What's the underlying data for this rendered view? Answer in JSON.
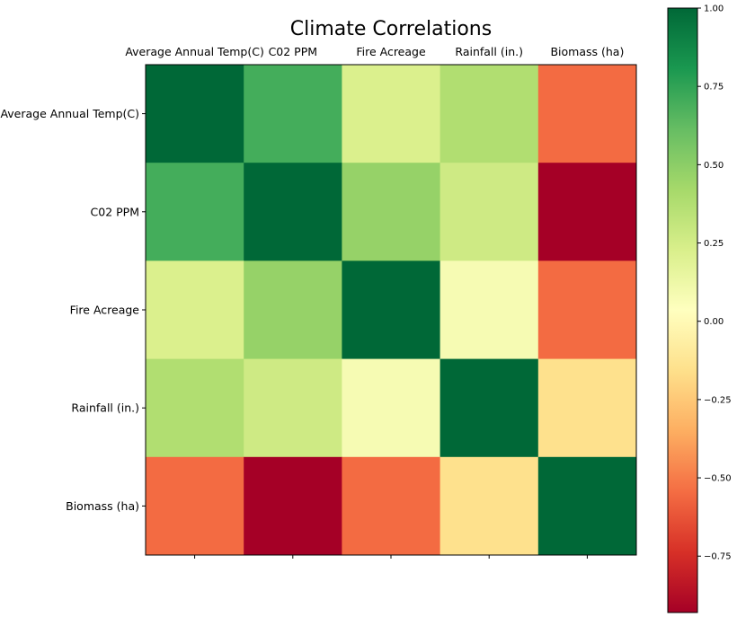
{
  "chart_data": {
    "type": "heatmap",
    "title": "Climate Correlations",
    "xlabel": "",
    "ylabel": "",
    "x_categories": [
      "Average Annual Temp(C)",
      "C02 PPM",
      "Fire Acreage",
      "Rainfall (in.)",
      "Biomass (ha)"
    ],
    "y_categories": [
      "Average Annual Temp(C)",
      "C02 PPM",
      "Fire Acreage",
      "Rainfall (in.)",
      "Biomass (ha)"
    ],
    "x_axis_position": "top",
    "values": [
      [
        1.0,
        0.7,
        0.22,
        0.38,
        -0.55
      ],
      [
        0.7,
        1.0,
        0.47,
        0.27,
        -0.93
      ],
      [
        0.22,
        0.47,
        1.0,
        0.08,
        -0.55
      ],
      [
        0.38,
        0.27,
        0.08,
        1.0,
        -0.15
      ],
      [
        -0.55,
        -0.93,
        -0.55,
        -0.15,
        1.0
      ]
    ],
    "colormap": "RdYlGn",
    "colorbar": {
      "vmin": -0.93,
      "vmax": 1.0,
      "ticks": [
        1.0,
        0.75,
        0.5,
        0.25,
        0.0,
        -0.25,
        -0.5,
        -0.75
      ],
      "tick_labels": [
        "1.00",
        "0.75",
        "0.50",
        "0.25",
        "0.00",
        "−0.25",
        "−0.50",
        "−0.75"
      ],
      "position": "right"
    },
    "grid": false,
    "colors": {
      "rdylgn_stops": [
        "#a50026",
        "#d73027",
        "#f46d43",
        "#fdae61",
        "#fee08b",
        "#ffffbf",
        "#d9ef8b",
        "#a6d96a",
        "#66bd63",
        "#1a9850",
        "#006837"
      ]
    }
  }
}
